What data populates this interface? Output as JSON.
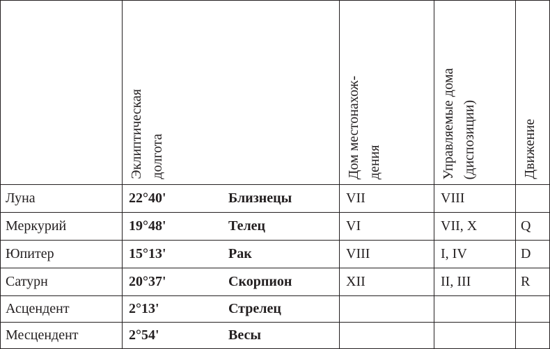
{
  "table": {
    "headers": [
      {
        "col": 1,
        "lines": [
          "Эклиптическая",
          "долгота"
        ]
      },
      {
        "col": 2,
        "lines": [
          "Дом местонахож-",
          "дения"
        ]
      },
      {
        "col": 3,
        "lines": [
          "Управляемые дома",
          "(диспозиции)"
        ]
      },
      {
        "col": 4,
        "lines": [
          "Движение"
        ]
      }
    ],
    "rows": [
      {
        "name": "Луна",
        "longitude": "22°40'",
        "sign": "Близнецы",
        "house": "VII",
        "ruled": "VIII"
      },
      {
        "name": "Меркурий",
        "longitude": "19°48'",
        "sign": "Телец",
        "house": "VI",
        "ruled": "VII, X",
        "motion": "Q"
      },
      {
        "name": "Юпитер",
        "longitude": "15°13'",
        "sign": "Рак",
        "house": "VIII",
        "ruled": "I, IV",
        "motion": "D"
      },
      {
        "name": "Сатурн",
        "longitude": "20°37'",
        "sign": "Скорпион",
        "house": "XII",
        "ruled": "II, III",
        "motion": "R"
      },
      {
        "name": "Асцендент",
        "longitude": "2°13'",
        "sign": "Стрелец"
      },
      {
        "name": "Месцендент",
        "longitude": "2°54'",
        "sign": "Весы"
      }
    ]
  }
}
